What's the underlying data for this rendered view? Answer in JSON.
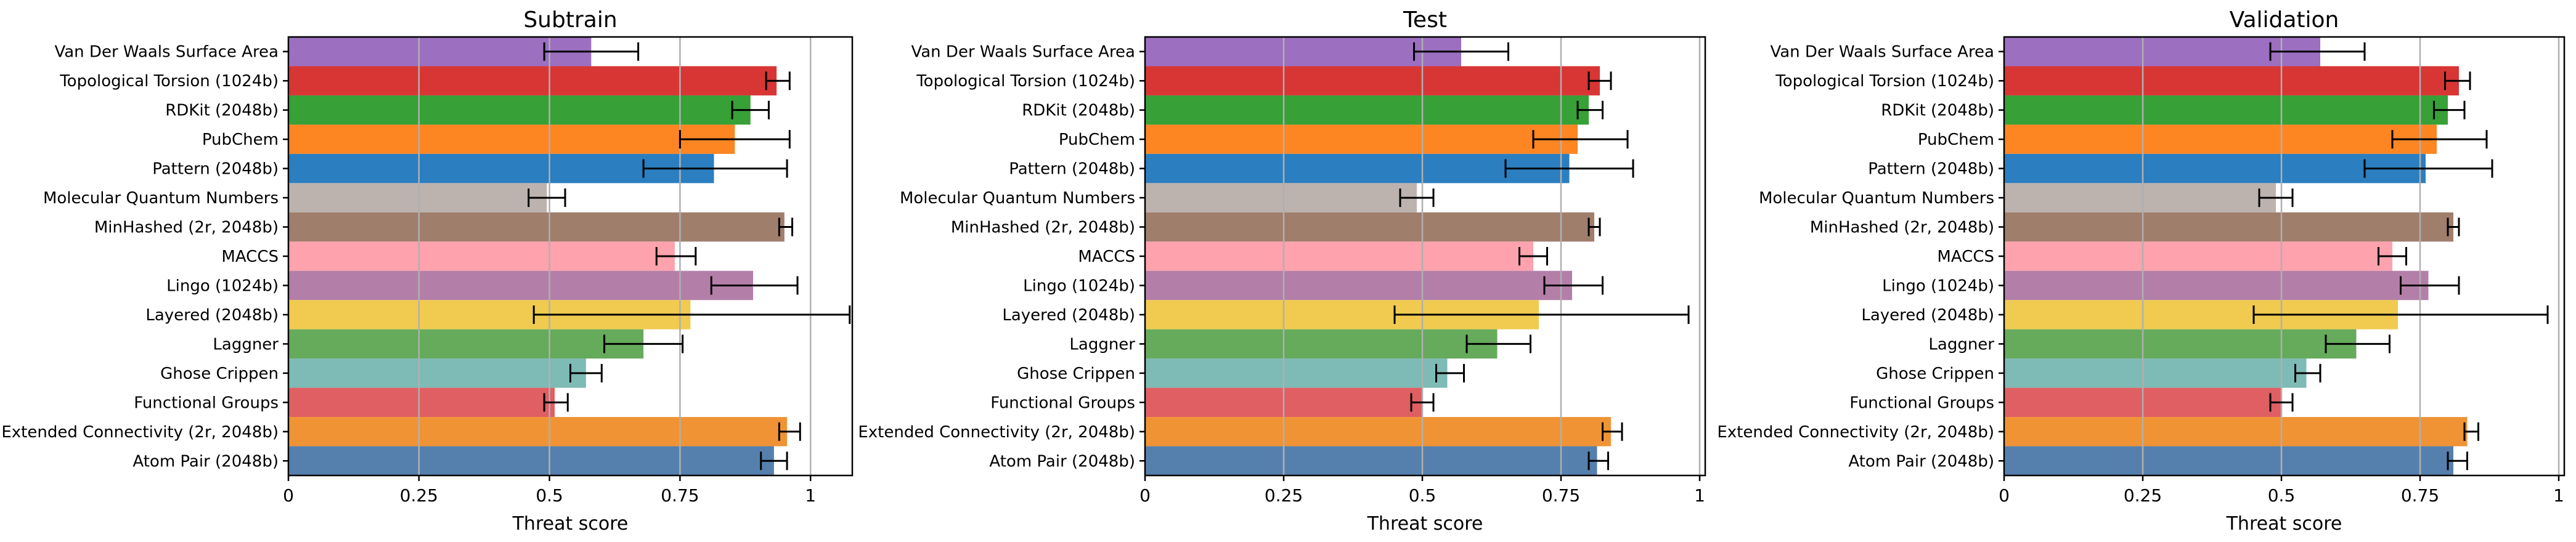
{
  "colors": {
    "Van Der Waals Surface Area": "#9c6fc1",
    "Topological Torsion (1024b)": "#d83535",
    "RDKit (2048b)": "#37a037",
    "PubChem": "#fd8522",
    "Pattern (2048b)": "#2b7ec0",
    "Molecular Quantum Numbers": "#bdb3ae",
    "MinHashed (2r, 2048b)": "#a07e6c",
    "MACCS": "#fea2ad",
    "Lingo (1024b)": "#b37fa8",
    "Layered (2048b)": "#f0cb4f",
    "Laggner": "#66aa5b",
    "Ghose Crippen": "#7ebab6",
    "Functional Groups": "#e05f62",
    "Extended Connectivity (2r, 2048b)": "#f09335",
    "Atom Pair (2048b)": "#5580ad",
    "gridline": "#b0b0b0",
    "errorbar": "#000000"
  },
  "chart_data": [
    {
      "type": "bar",
      "orientation": "horizontal",
      "title": "Subtrain",
      "xlabel": "Threat score",
      "xlim": [
        0,
        1.08
      ],
      "xticks": [
        "0",
        "0.25",
        "0.5",
        "0.75",
        "1"
      ],
      "grid": "vertical",
      "categories": [
        "Van Der Waals Surface Area",
        "Topological Torsion (1024b)",
        "RDKit (2048b)",
        "PubChem",
        "Pattern (2048b)",
        "Molecular Quantum Numbers",
        "MinHashed (2r, 2048b)",
        "MACCS",
        "Lingo (1024b)",
        "Layered (2048b)",
        "Laggner",
        "Ghose Crippen",
        "Functional Groups",
        "Extended Connectivity (2r, 2048b)",
        "Atom Pair (2048b)"
      ],
      "values": [
        0.58,
        0.935,
        0.885,
        0.855,
        0.815,
        0.495,
        0.95,
        0.74,
        0.89,
        0.77,
        0.68,
        0.57,
        0.51,
        0.955,
        0.93
      ],
      "err_low": [
        0.49,
        0.915,
        0.85,
        0.75,
        0.68,
        0.46,
        0.94,
        0.705,
        0.81,
        0.47,
        0.605,
        0.54,
        0.49,
        0.94,
        0.905
      ],
      "err_high": [
        0.67,
        0.96,
        0.92,
        0.96,
        0.955,
        0.53,
        0.965,
        0.78,
        0.975,
        1.075,
        0.755,
        0.6,
        0.535,
        0.98,
        0.955
      ]
    },
    {
      "type": "bar",
      "orientation": "horizontal",
      "title": "Test",
      "xlabel": "Threat score",
      "xlim": [
        0,
        1.01
      ],
      "xticks": [
        "0",
        "0.25",
        "0.5",
        "0.75",
        "1"
      ],
      "grid": "vertical",
      "categories": [
        "Van Der Waals Surface Area",
        "Topological Torsion (1024b)",
        "RDKit (2048b)",
        "PubChem",
        "Pattern (2048b)",
        "Molecular Quantum Numbers",
        "MinHashed (2r, 2048b)",
        "MACCS",
        "Lingo (1024b)",
        "Layered (2048b)",
        "Laggner",
        "Ghose Crippen",
        "Functional Groups",
        "Extended Connectivity (2r, 2048b)",
        "Atom Pair (2048b)"
      ],
      "values": [
        0.57,
        0.82,
        0.8,
        0.78,
        0.765,
        0.49,
        0.81,
        0.7,
        0.77,
        0.71,
        0.635,
        0.545,
        0.5,
        0.84,
        0.815
      ],
      "err_low": [
        0.485,
        0.8,
        0.78,
        0.7,
        0.65,
        0.46,
        0.8,
        0.675,
        0.72,
        0.45,
        0.58,
        0.525,
        0.48,
        0.825,
        0.8
      ],
      "err_high": [
        0.655,
        0.84,
        0.825,
        0.87,
        0.88,
        0.52,
        0.82,
        0.725,
        0.825,
        0.98,
        0.695,
        0.575,
        0.52,
        0.86,
        0.835
      ]
    },
    {
      "type": "bar",
      "orientation": "horizontal",
      "title": "Validation",
      "xlabel": "Threat score",
      "xlim": [
        0,
        1.01
      ],
      "xticks": [
        "0",
        "0.25",
        "0.5",
        "0.75",
        "1"
      ],
      "grid": "vertical",
      "categories": [
        "Van Der Waals Surface Area",
        "Topological Torsion (1024b)",
        "RDKit (2048b)",
        "PubChem",
        "Pattern (2048b)",
        "Molecular Quantum Numbers",
        "MinHashed (2r, 2048b)",
        "MACCS",
        "Lingo (1024b)",
        "Layered (2048b)",
        "Laggner",
        "Ghose Crippen",
        "Functional Groups",
        "Extended Connectivity (2r, 2048b)",
        "Atom Pair (2048b)"
      ],
      "values": [
        0.57,
        0.82,
        0.8,
        0.78,
        0.76,
        0.49,
        0.81,
        0.7,
        0.765,
        0.71,
        0.635,
        0.545,
        0.5,
        0.835,
        0.81
      ],
      "err_low": [
        0.48,
        0.795,
        0.775,
        0.7,
        0.65,
        0.46,
        0.8,
        0.675,
        0.715,
        0.45,
        0.58,
        0.525,
        0.48,
        0.83,
        0.8
      ],
      "err_high": [
        0.65,
        0.84,
        0.83,
        0.87,
        0.88,
        0.52,
        0.82,
        0.725,
        0.82,
        0.98,
        0.695,
        0.57,
        0.52,
        0.855,
        0.835
      ]
    }
  ]
}
